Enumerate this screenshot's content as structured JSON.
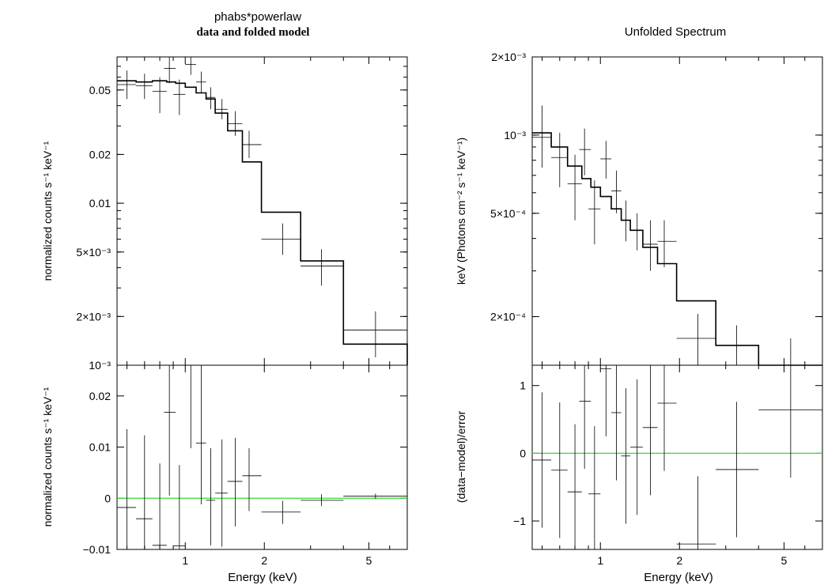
{
  "chart_data": [
    {
      "type": "line",
      "panel": "left-top",
      "title": "phabs*powerlaw",
      "subtitle": "data and folded model",
      "ylabel": "normalized counts s⁻¹ keV⁻¹",
      "yscale": "log",
      "xscale": "log",
      "xlim": [
        0.55,
        7.0
      ],
      "ylim": [
        0.001,
        0.08
      ],
      "yticks": [
        {
          "value": 0.05,
          "label": "0.05"
        },
        {
          "value": 0.02,
          "label": "0.02"
        },
        {
          "value": 0.01,
          "label": "0.01"
        },
        {
          "value": 0.005,
          "label": "5×10⁻³"
        },
        {
          "value": 0.002,
          "label": "2×10⁻³"
        },
        {
          "value": 0.001,
          "label": "10⁻³"
        }
      ],
      "data_color": "#000000",
      "model_color": "#000000",
      "data": [
        {
          "x": 0.6,
          "xlo": 0.55,
          "xhi": 0.65,
          "y": 0.054,
          "ylo": 0.044,
          "yhi": 0.066
        },
        {
          "x": 0.7,
          "xlo": 0.65,
          "xhi": 0.75,
          "y": 0.053,
          "ylo": 0.044,
          "yhi": 0.063
        },
        {
          "x": 0.8,
          "xlo": 0.75,
          "xhi": 0.85,
          "y": 0.049,
          "ylo": 0.036,
          "yhi": 0.06
        },
        {
          "x": 0.87,
          "xlo": 0.83,
          "xhi": 0.92,
          "y": 0.068,
          "ylo": 0.055,
          "yhi": 0.08
        },
        {
          "x": 0.95,
          "xlo": 0.9,
          "xhi": 1.0,
          "y": 0.047,
          "ylo": 0.035,
          "yhi": 0.058
        },
        {
          "x": 1.05,
          "xlo": 1.0,
          "xhi": 1.1,
          "y": 0.072,
          "ylo": 0.062,
          "yhi": 0.08
        },
        {
          "x": 1.15,
          "xlo": 1.1,
          "xhi": 1.2,
          "y": 0.056,
          "ylo": 0.048,
          "yhi": 0.065
        },
        {
          "x": 1.25,
          "xlo": 1.2,
          "xhi": 1.3,
          "y": 0.045,
          "ylo": 0.038,
          "yhi": 0.052
        },
        {
          "x": 1.38,
          "xlo": 1.3,
          "xhi": 1.45,
          "y": 0.038,
          "ylo": 0.033,
          "yhi": 0.044
        },
        {
          "x": 1.55,
          "xlo": 1.45,
          "xhi": 1.65,
          "y": 0.031,
          "ylo": 0.026,
          "yhi": 0.037
        },
        {
          "x": 1.75,
          "xlo": 1.65,
          "xhi": 1.95,
          "y": 0.023,
          "ylo": 0.019,
          "yhi": 0.028
        },
        {
          "x": 2.35,
          "xlo": 1.95,
          "xhi": 2.75,
          "y": 0.006,
          "ylo": 0.0048,
          "yhi": 0.0075
        },
        {
          "x": 3.3,
          "xlo": 2.75,
          "xhi": 4.0,
          "y": 0.0041,
          "ylo": 0.0031,
          "yhi": 0.0052
        },
        {
          "x": 5.3,
          "xlo": 4.0,
          "xhi": 7.0,
          "y": 0.00165,
          "ylo": 0.00112,
          "yhi": 0.00215
        }
      ],
      "model": [
        {
          "xlo": 0.55,
          "xhi": 0.65,
          "y": 0.057
        },
        {
          "xlo": 0.65,
          "xhi": 0.75,
          "y": 0.056
        },
        {
          "xlo": 0.75,
          "xhi": 0.85,
          "y": 0.057
        },
        {
          "xlo": 0.85,
          "xhi": 0.92,
          "y": 0.056
        },
        {
          "xlo": 0.92,
          "xhi": 1.0,
          "y": 0.055
        },
        {
          "xlo": 1.0,
          "xhi": 1.1,
          "y": 0.052
        },
        {
          "xlo": 1.1,
          "xhi": 1.2,
          "y": 0.048
        },
        {
          "xlo": 1.2,
          "xhi": 1.3,
          "y": 0.044
        },
        {
          "xlo": 1.3,
          "xhi": 1.45,
          "y": 0.036
        },
        {
          "xlo": 1.45,
          "xhi": 1.65,
          "y": 0.028
        },
        {
          "xlo": 1.65,
          "xhi": 1.95,
          "y": 0.018
        },
        {
          "xlo": 1.95,
          "xhi": 2.75,
          "y": 0.0088
        },
        {
          "xlo": 2.75,
          "xhi": 4.0,
          "y": 0.0044
        },
        {
          "xlo": 4.0,
          "xhi": 7.0,
          "y": 0.00135
        }
      ]
    },
    {
      "type": "scatter",
      "panel": "left-bottom",
      "ylabel": "normalized counts s⁻¹ keV⁻¹",
      "xlabel": "Energy (keV)",
      "yscale": "linear",
      "xscale": "log",
      "xlim": [
        0.55,
        7.0
      ],
      "ylim": [
        -0.01,
        0.026
      ],
      "yticks": [
        {
          "value": 0.02,
          "label": "0.02"
        },
        {
          "value": 0.01,
          "label": "0.01"
        },
        {
          "value": 0,
          "label": "0"
        },
        {
          "value": -0.01,
          "label": "−0.01"
        }
      ],
      "xticks": [
        {
          "value": 1,
          "label": "1"
        },
        {
          "value": 2,
          "label": "2"
        },
        {
          "value": 5,
          "label": "5"
        }
      ],
      "zero_line_color": "#33dd33",
      "data": [
        {
          "x": 0.6,
          "xlo": 0.55,
          "xhi": 0.65,
          "y": -0.0018,
          "ylo": -0.0105,
          "yhi": 0.0135
        },
        {
          "x": 0.7,
          "xlo": 0.65,
          "xhi": 0.75,
          "y": -0.004,
          "ylo": -0.0105,
          "yhi": 0.0123
        },
        {
          "x": 0.8,
          "xlo": 0.75,
          "xhi": 0.85,
          "y": -0.0092,
          "ylo": -0.0105,
          "yhi": 0.0068
        },
        {
          "x": 0.87,
          "xlo": 0.83,
          "xhi": 0.92,
          "y": 0.0168,
          "ylo": 0.0005,
          "yhi": 0.026
        },
        {
          "x": 0.95,
          "xlo": 0.9,
          "xhi": 1.0,
          "y": -0.0093,
          "ylo": -0.0105,
          "yhi": 0.0065
        },
        {
          "x": 1.05,
          "xlo": 1.0,
          "xhi": 1.1,
          "y": 0.026,
          "ylo": 0.0098,
          "yhi": 0.026
        },
        {
          "x": 1.15,
          "xlo": 1.1,
          "xhi": 1.2,
          "y": 0.0108,
          "ylo": -0.0012,
          "yhi": 0.026
        },
        {
          "x": 1.25,
          "xlo": 1.2,
          "xhi": 1.3,
          "y": -0.0004,
          "ylo": -0.0092,
          "yhi": 0.0098
        },
        {
          "x": 1.38,
          "xlo": 1.3,
          "xhi": 1.45,
          "y": 0.001,
          "ylo": -0.0095,
          "yhi": 0.0115
        },
        {
          "x": 1.55,
          "xlo": 1.45,
          "xhi": 1.65,
          "y": 0.0033,
          "ylo": -0.0055,
          "yhi": 0.0118
        },
        {
          "x": 1.75,
          "xlo": 1.65,
          "xhi": 1.95,
          "y": 0.0044,
          "ylo": -0.0025,
          "yhi": 0.0098
        },
        {
          "x": 2.35,
          "xlo": 1.95,
          "xhi": 2.75,
          "y": -0.0027,
          "ylo": -0.005,
          "yhi": -0.0005
        },
        {
          "x": 3.3,
          "xlo": 2.75,
          "xhi": 4.0,
          "y": -0.0004,
          "ylo": -0.0015,
          "yhi": 0.0008
        },
        {
          "x": 5.3,
          "xlo": 4.0,
          "xhi": 7.0,
          "y": 0.0004,
          "ylo": -0.0001,
          "yhi": 0.0009
        }
      ]
    },
    {
      "type": "line",
      "panel": "right-top",
      "title": "Unfolded Spectrum",
      "ylabel": "keV (Photons cm⁻² s⁻¹ keV⁻¹)",
      "yscale": "log",
      "xscale": "log",
      "xlim": [
        0.55,
        7.0
      ],
      "ylim": [
        0.00013,
        0.002
      ],
      "yticks": [
        {
          "value": 0.002,
          "label": "2×10⁻³"
        },
        {
          "value": 0.001,
          "label": "10⁻³"
        },
        {
          "value": 0.0005,
          "label": "5×10⁻⁴"
        },
        {
          "value": 0.0002,
          "label": "2×10⁻⁴"
        }
      ],
      "data": [
        {
          "x": 0.6,
          "xlo": 0.55,
          "xhi": 0.65,
          "y": 0.00098,
          "ylo": 0.00075,
          "yhi": 0.0013
        },
        {
          "x": 0.7,
          "xlo": 0.65,
          "xhi": 0.75,
          "y": 0.00082,
          "ylo": 0.00063,
          "yhi": 0.00102
        },
        {
          "x": 0.8,
          "xlo": 0.75,
          "xhi": 0.85,
          "y": 0.00065,
          "ylo": 0.00047,
          "yhi": 0.00084
        },
        {
          "x": 0.87,
          "xlo": 0.83,
          "xhi": 0.92,
          "y": 0.00088,
          "ylo": 0.0007,
          "yhi": 0.00106
        },
        {
          "x": 0.95,
          "xlo": 0.9,
          "xhi": 1.0,
          "y": 0.00052,
          "ylo": 0.00038,
          "yhi": 0.00067
        },
        {
          "x": 1.05,
          "xlo": 1.0,
          "xhi": 1.1,
          "y": 0.00081,
          "ylo": 0.00068,
          "yhi": 0.00095
        },
        {
          "x": 1.15,
          "xlo": 1.1,
          "xhi": 1.2,
          "y": 0.00061,
          "ylo": 0.0005,
          "yhi": 0.00073
        },
        {
          "x": 1.25,
          "xlo": 1.2,
          "xhi": 1.3,
          "y": 0.00047,
          "ylo": 0.00039,
          "yhi": 0.00056
        },
        {
          "x": 1.38,
          "xlo": 1.3,
          "xhi": 1.45,
          "y": 0.00043,
          "ylo": 0.00036,
          "yhi": 0.0005
        },
        {
          "x": 1.55,
          "xlo": 1.45,
          "xhi": 1.65,
          "y": 0.00038,
          "ylo": 0.0003,
          "yhi": 0.00047
        },
        {
          "x": 1.75,
          "xlo": 1.65,
          "xhi": 1.95,
          "y": 0.00039,
          "ylo": 0.00031,
          "yhi": 0.00047
        },
        {
          "x": 2.35,
          "xlo": 1.95,
          "xhi": 2.75,
          "y": 0.000165,
          "ylo": 0.000128,
          "yhi": 0.000205
        },
        {
          "x": 3.3,
          "xlo": 2.75,
          "xhi": 4.0,
          "y": 0.000155,
          "ylo": 0.000128,
          "yhi": 0.000185
        },
        {
          "x": 5.3,
          "xlo": 4.0,
          "xhi": 7.0,
          "y": 0.000128,
          "ylo": 0.000128,
          "yhi": 0.000165
        }
      ],
      "model": [
        {
          "xlo": 0.55,
          "xhi": 0.65,
          "y": 0.00102
        },
        {
          "xlo": 0.65,
          "xhi": 0.75,
          "y": 0.0009
        },
        {
          "xlo": 0.75,
          "xhi": 0.85,
          "y": 0.00076
        },
        {
          "xlo": 0.85,
          "xhi": 0.92,
          "y": 0.00068
        },
        {
          "xlo": 0.92,
          "xhi": 1.0,
          "y": 0.00063
        },
        {
          "xlo": 1.0,
          "xhi": 1.1,
          "y": 0.00058
        },
        {
          "xlo": 1.1,
          "xhi": 1.2,
          "y": 0.00052
        },
        {
          "xlo": 1.2,
          "xhi": 1.3,
          "y": 0.00047
        },
        {
          "xlo": 1.3,
          "xhi": 1.45,
          "y": 0.00043
        },
        {
          "xlo": 1.45,
          "xhi": 1.65,
          "y": 0.00037
        },
        {
          "xlo": 1.65,
          "xhi": 1.95,
          "y": 0.00032
        },
        {
          "xlo": 1.95,
          "xhi": 2.75,
          "y": 0.00023
        },
        {
          "xlo": 2.75,
          "xhi": 4.0,
          "y": 0.000155
        },
        {
          "xlo": 4.0,
          "xhi": 7.0,
          "y": 0.000115
        }
      ]
    },
    {
      "type": "scatter",
      "panel": "right-bottom",
      "ylabel": "(data−model)/error",
      "xlabel": "Energy (keV)",
      "yscale": "linear",
      "xscale": "log",
      "xlim": [
        0.55,
        7.0
      ],
      "ylim": [
        -1.42,
        1.3
      ],
      "yticks": [
        {
          "value": 1,
          "label": "1"
        },
        {
          "value": 0,
          "label": "0"
        },
        {
          "value": -1,
          "label": "−1"
        }
      ],
      "xticks": [
        {
          "value": 1,
          "label": "1"
        },
        {
          "value": 2,
          "label": "2"
        },
        {
          "value": 5,
          "label": "5"
        }
      ],
      "zero_line_color": "#33dd33",
      "data": [
        {
          "x": 0.6,
          "xlo": 0.55,
          "xhi": 0.65,
          "y": -0.1,
          "ylo": -1.1,
          "yhi": 0.9
        },
        {
          "x": 0.7,
          "xlo": 0.65,
          "xhi": 0.75,
          "y": -0.25,
          "ylo": -1.25,
          "yhi": 0.75
        },
        {
          "x": 0.8,
          "xlo": 0.75,
          "xhi": 0.85,
          "y": -0.57,
          "ylo": -1.42,
          "yhi": 0.43
        },
        {
          "x": 0.87,
          "xlo": 0.83,
          "xhi": 0.92,
          "y": 0.77,
          "ylo": -0.23,
          "yhi": 1.3
        },
        {
          "x": 0.95,
          "xlo": 0.9,
          "xhi": 1.0,
          "y": -0.6,
          "ylo": -1.42,
          "yhi": 0.4
        },
        {
          "x": 1.05,
          "xlo": 1.0,
          "xhi": 1.1,
          "y": 1.25,
          "ylo": 0.25,
          "yhi": 1.3
        },
        {
          "x": 1.15,
          "xlo": 1.1,
          "xhi": 1.2,
          "y": 0.6,
          "ylo": -0.4,
          "yhi": 1.3
        },
        {
          "x": 1.25,
          "xlo": 1.2,
          "xhi": 1.3,
          "y": -0.04,
          "ylo": -1.04,
          "yhi": 0.96
        },
        {
          "x": 1.38,
          "xlo": 1.3,
          "xhi": 1.45,
          "y": 0.09,
          "ylo": -0.91,
          "yhi": 1.09
        },
        {
          "x": 1.55,
          "xlo": 1.45,
          "xhi": 1.65,
          "y": 0.38,
          "ylo": -0.62,
          "yhi": 1.3
        },
        {
          "x": 1.75,
          "xlo": 1.65,
          "xhi": 1.95,
          "y": 0.74,
          "ylo": -0.26,
          "yhi": 1.3
        },
        {
          "x": 2.35,
          "xlo": 1.95,
          "xhi": 2.75,
          "y": -1.34,
          "ylo": -1.42,
          "yhi": -0.34
        },
        {
          "x": 3.3,
          "xlo": 2.75,
          "xhi": 4.0,
          "y": -0.24,
          "ylo": -1.24,
          "yhi": 0.76
        },
        {
          "x": 5.3,
          "xlo": 4.0,
          "xhi": 7.0,
          "y": 0.64,
          "ylo": -0.36,
          "yhi": 1.64
        }
      ]
    }
  ]
}
